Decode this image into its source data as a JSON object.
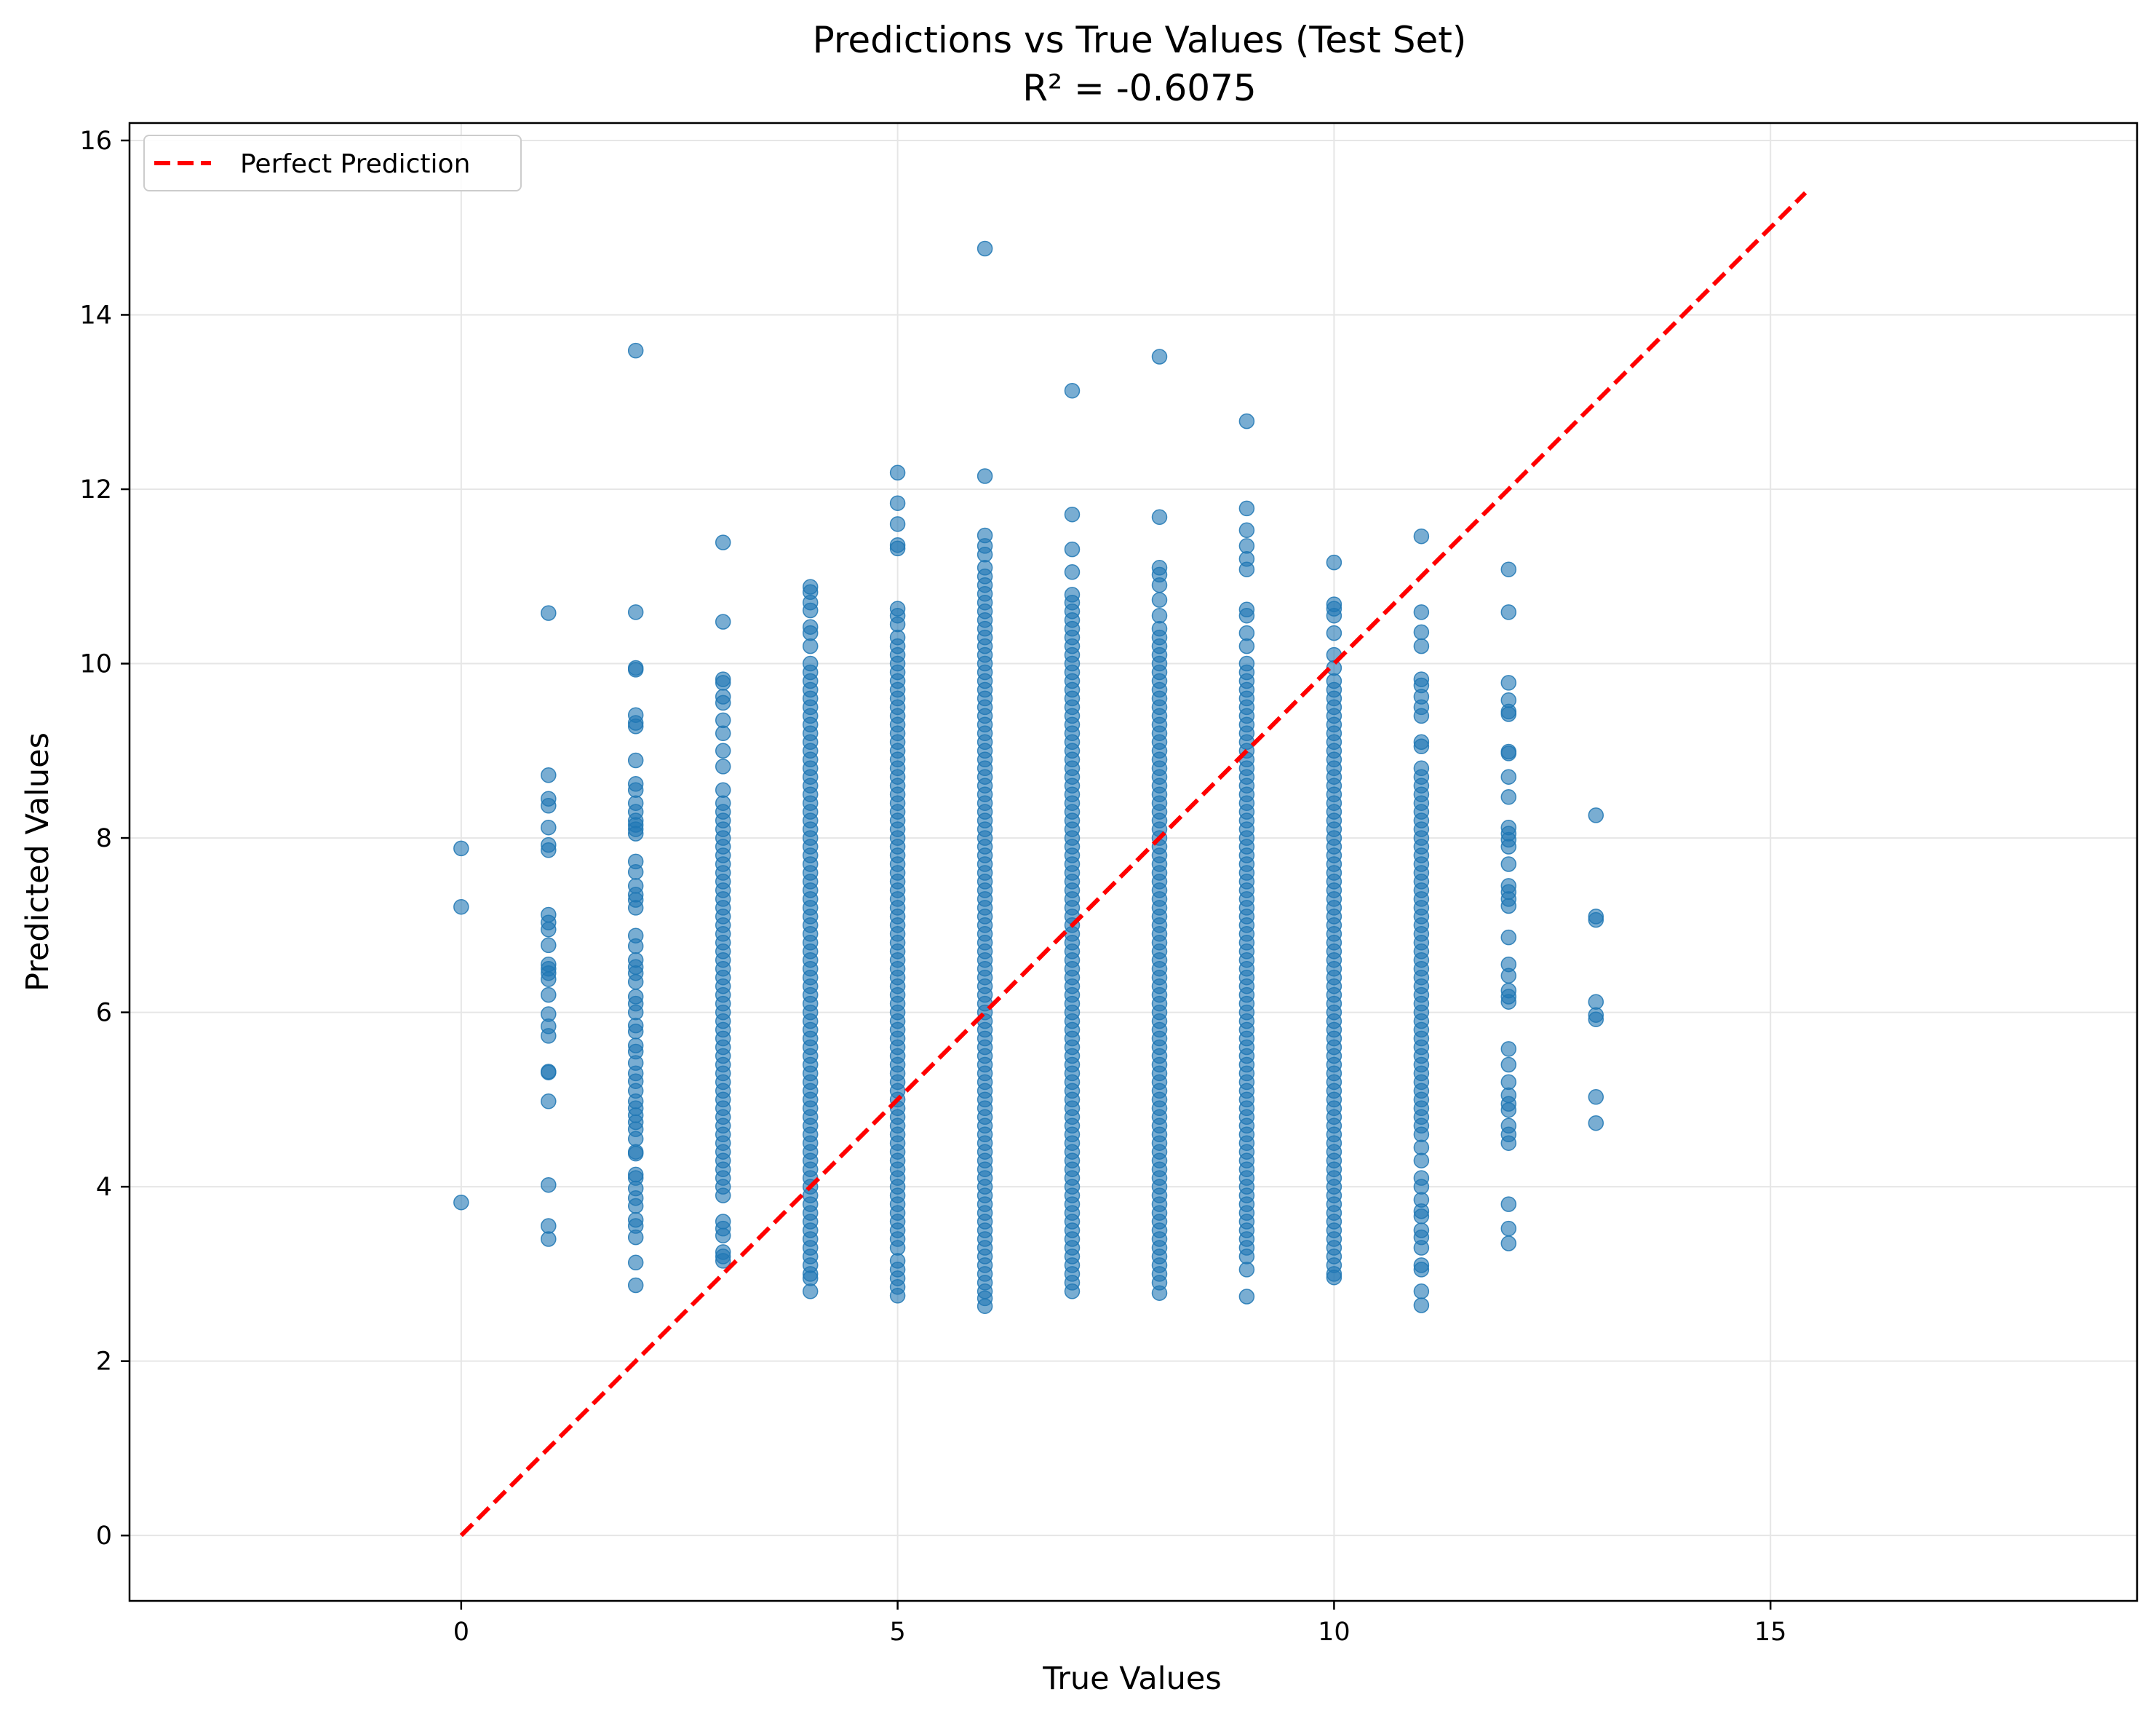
{
  "chart_data": {
    "type": "scatter",
    "title": "Predictions vs True Values (Test Set)",
    "subtitle": "R² = -0.6075",
    "xlabel": "True Values",
    "ylabel": "Predicted Values",
    "xlim": [
      -3.8,
      19.2
    ],
    "ylim": [
      -0.75,
      16.2
    ],
    "xticks": [
      0,
      5,
      10,
      15
    ],
    "yticks": [
      0,
      2,
      4,
      6,
      8,
      10,
      12,
      14,
      16
    ],
    "grid": true,
    "legend": {
      "position": "top-left",
      "entries": [
        "Perfect Prediction"
      ]
    },
    "colors": {
      "points": "#1f77b4",
      "reference": "#ff0000",
      "grid": "#e6e6e6"
    },
    "series": [
      {
        "type": "scatter",
        "points_by_x": [
          {
            "x": 0,
            "y": [
              7.88,
              7.21,
              3.82
            ]
          },
          {
            "x": 1,
            "y": [
              10.58,
              8.72,
              8.45,
              8.37,
              8.12,
              7.92,
              7.86,
              7.12,
              7.03,
              6.95,
              6.77,
              6.55,
              6.5,
              6.45,
              6.38,
              6.2,
              5.98,
              5.84,
              5.73,
              5.32,
              5.31,
              4.98,
              4.02,
              3.55,
              3.4
            ]
          },
          {
            "x": 2,
            "y": [
              13.59,
              10.59,
              9.95,
              9.93,
              9.41,
              9.32,
              9.28,
              8.89,
              8.62,
              8.55,
              8.4,
              8.3,
              8.2,
              8.15,
              8.1,
              8.05,
              7.73,
              7.61,
              7.45,
              7.35,
              7.29,
              7.2,
              6.88,
              6.76,
              6.6,
              6.52,
              6.45,
              6.35,
              6.18,
              6.1,
              6.0,
              5.85,
              5.78,
              5.62,
              5.55,
              5.42,
              5.3,
              5.21,
              5.1,
              4.98,
              4.9,
              4.82,
              4.74,
              4.66,
              4.55,
              4.4,
              4.38,
              4.14,
              4.1,
              3.98,
              3.87,
              3.78,
              3.62,
              3.55,
              3.42,
              3.13,
              2.87
            ]
          },
          {
            "x": 3,
            "y": [
              11.39,
              10.48,
              9.82,
              9.78,
              9.62,
              9.55,
              9.35,
              9.2,
              9.0,
              8.82,
              8.55,
              8.4,
              8.3,
              8.2,
              8.1,
              8.0,
              7.9,
              7.8,
              7.7,
              7.6,
              7.5,
              7.4,
              7.3,
              7.2,
              7.1,
              7.0,
              6.9,
              6.8,
              6.7,
              6.6,
              6.5,
              6.4,
              6.3,
              6.2,
              6.1,
              6.0,
              5.9,
              5.8,
              5.7,
              5.6,
              5.5,
              5.4,
              5.3,
              5.2,
              5.1,
              5.0,
              4.9,
              4.8,
              4.7,
              4.6,
              4.5,
              4.4,
              4.3,
              4.2,
              4.1,
              4.0,
              3.9,
              3.6,
              3.52,
              3.44,
              3.25,
              3.2,
              3.15
            ]
          },
          {
            "x": 4,
            "y": [
              10.88,
              10.82,
              10.7,
              10.61,
              10.42,
              10.35,
              10.2,
              10.0,
              9.9,
              9.8,
              9.7,
              9.6,
              9.5,
              9.4,
              9.3,
              9.2,
              9.1,
              9.0,
              8.9,
              8.8,
              8.7,
              8.6,
              8.5,
              8.4,
              8.3,
              8.2,
              8.1,
              8.0,
              7.9,
              7.8,
              7.7,
              7.6,
              7.5,
              7.4,
              7.3,
              7.2,
              7.1,
              7.0,
              6.9,
              6.8,
              6.7,
              6.6,
              6.5,
              6.4,
              6.3,
              6.2,
              6.1,
              6.0,
              5.9,
              5.8,
              5.7,
              5.6,
              5.5,
              5.4,
              5.3,
              5.2,
              5.1,
              5.0,
              4.9,
              4.8,
              4.7,
              4.6,
              4.5,
              4.4,
              4.3,
              4.2,
              4.1,
              4.0,
              3.9,
              3.8,
              3.7,
              3.6,
              3.5,
              3.4,
              3.3,
              3.2,
              3.1,
              3.0,
              2.95,
              2.8
            ]
          },
          {
            "x": 5,
            "y": [
              12.19,
              11.84,
              11.6,
              11.36,
              11.32,
              10.63,
              10.55,
              10.45,
              10.3,
              10.2,
              10.1,
              10.0,
              9.9,
              9.8,
              9.7,
              9.6,
              9.5,
              9.4,
              9.3,
              9.2,
              9.1,
              9.0,
              8.9,
              8.8,
              8.7,
              8.6,
              8.5,
              8.4,
              8.3,
              8.2,
              8.1,
              8.0,
              7.9,
              7.8,
              7.7,
              7.6,
              7.5,
              7.4,
              7.3,
              7.2,
              7.1,
              7.0,
              6.9,
              6.8,
              6.7,
              6.6,
              6.5,
              6.4,
              6.3,
              6.2,
              6.1,
              6.0,
              5.9,
              5.8,
              5.7,
              5.6,
              5.5,
              5.4,
              5.3,
              5.2,
              5.1,
              5.0,
              4.9,
              4.8,
              4.7,
              4.6,
              4.5,
              4.4,
              4.3,
              4.2,
              4.1,
              4.0,
              3.9,
              3.8,
              3.7,
              3.6,
              3.5,
              3.4,
              3.3,
              3.15,
              3.05,
              2.95,
              2.85,
              2.75
            ]
          },
          {
            "x": 6,
            "y": [
              14.76,
              12.15,
              11.47,
              11.35,
              11.25,
              11.1,
              11.0,
              10.9,
              10.8,
              10.7,
              10.6,
              10.5,
              10.4,
              10.3,
              10.2,
              10.1,
              10.0,
              9.9,
              9.8,
              9.7,
              9.6,
              9.5,
              9.4,
              9.3,
              9.2,
              9.1,
              9.0,
              8.9,
              8.8,
              8.7,
              8.6,
              8.5,
              8.4,
              8.3,
              8.2,
              8.1,
              8.0,
              7.9,
              7.8,
              7.7,
              7.6,
              7.5,
              7.4,
              7.3,
              7.2,
              7.1,
              7.0,
              6.9,
              6.8,
              6.7,
              6.6,
              6.5,
              6.4,
              6.3,
              6.2,
              6.1,
              6.0,
              5.9,
              5.8,
              5.7,
              5.6,
              5.5,
              5.4,
              5.3,
              5.2,
              5.1,
              5.0,
              4.9,
              4.8,
              4.7,
              4.6,
              4.5,
              4.4,
              4.3,
              4.2,
              4.1,
              4.0,
              3.9,
              3.8,
              3.7,
              3.6,
              3.5,
              3.4,
              3.3,
              3.2,
              3.1,
              3.0,
              2.9,
              2.8,
              2.72,
              2.63
            ]
          },
          {
            "x": 7,
            "y": [
              13.13,
              11.71,
              11.31,
              11.05,
              10.79,
              10.7,
              10.6,
              10.5,
              10.4,
              10.3,
              10.2,
              10.1,
              10.0,
              9.9,
              9.8,
              9.7,
              9.6,
              9.5,
              9.4,
              9.3,
              9.2,
              9.1,
              9.0,
              8.9,
              8.8,
              8.7,
              8.6,
              8.5,
              8.4,
              8.3,
              8.2,
              8.1,
              8.0,
              7.9,
              7.8,
              7.7,
              7.6,
              7.5,
              7.4,
              7.3,
              7.2,
              7.1,
              7.0,
              6.9,
              6.8,
              6.7,
              6.6,
              6.5,
              6.4,
              6.3,
              6.2,
              6.1,
              6.0,
              5.9,
              5.8,
              5.7,
              5.6,
              5.5,
              5.4,
              5.3,
              5.2,
              5.1,
              5.0,
              4.9,
              4.8,
              4.7,
              4.6,
              4.5,
              4.4,
              4.3,
              4.2,
              4.1,
              4.0,
              3.9,
              3.8,
              3.7,
              3.6,
              3.5,
              3.4,
              3.3,
              3.2,
              3.1,
              3.0,
              2.9,
              2.8
            ]
          },
          {
            "x": 8,
            "y": [
              13.52,
              11.68,
              11.1,
              11.02,
              10.9,
              10.73,
              10.55,
              10.4,
              10.3,
              10.2,
              10.1,
              10.0,
              9.9,
              9.8,
              9.7,
              9.6,
              9.5,
              9.4,
              9.3,
              9.2,
              9.1,
              9.0,
              8.9,
              8.8,
              8.7,
              8.6,
              8.5,
              8.4,
              8.3,
              8.2,
              8.1,
              8.0,
              7.9,
              7.8,
              7.7,
              7.6,
              7.5,
              7.4,
              7.3,
              7.2,
              7.1,
              7.0,
              6.9,
              6.8,
              6.7,
              6.6,
              6.5,
              6.4,
              6.3,
              6.2,
              6.1,
              6.0,
              5.9,
              5.8,
              5.7,
              5.6,
              5.5,
              5.4,
              5.3,
              5.2,
              5.1,
              5.0,
              4.9,
              4.8,
              4.7,
              4.6,
              4.5,
              4.4,
              4.3,
              4.2,
              4.1,
              4.0,
              3.9,
              3.8,
              3.7,
              3.6,
              3.5,
              3.4,
              3.3,
              3.2,
              3.1,
              3.0,
              2.9,
              2.78
            ]
          },
          {
            "x": 9,
            "y": [
              12.78,
              11.78,
              11.53,
              11.35,
              11.2,
              11.08,
              10.62,
              10.55,
              10.35,
              10.2,
              10.0,
              9.9,
              9.8,
              9.7,
              9.6,
              9.5,
              9.4,
              9.3,
              9.2,
              9.1,
              9.0,
              8.9,
              8.8,
              8.7,
              8.6,
              8.5,
              8.4,
              8.3,
              8.2,
              8.1,
              8.0,
              7.9,
              7.8,
              7.7,
              7.6,
              7.5,
              7.4,
              7.3,
              7.2,
              7.1,
              7.0,
              6.9,
              6.8,
              6.7,
              6.6,
              6.5,
              6.4,
              6.3,
              6.2,
              6.1,
              6.0,
              5.9,
              5.8,
              5.7,
              5.6,
              5.5,
              5.4,
              5.3,
              5.2,
              5.1,
              5.0,
              4.9,
              4.8,
              4.7,
              4.6,
              4.5,
              4.4,
              4.3,
              4.2,
              4.1,
              4.0,
              3.9,
              3.8,
              3.7,
              3.6,
              3.5,
              3.4,
              3.3,
              3.2,
              3.05,
              2.74
            ]
          },
          {
            "x": 10,
            "y": [
              11.16,
              10.68,
              10.63,
              10.55,
              10.35,
              10.1,
              9.95,
              9.8,
              9.7,
              9.6,
              9.5,
              9.4,
              9.3,
              9.2,
              9.1,
              9.0,
              8.9,
              8.8,
              8.7,
              8.6,
              8.5,
              8.4,
              8.3,
              8.2,
              8.1,
              8.0,
              7.9,
              7.8,
              7.7,
              7.6,
              7.5,
              7.4,
              7.3,
              7.2,
              7.1,
              7.0,
              6.9,
              6.8,
              6.7,
              6.6,
              6.5,
              6.4,
              6.3,
              6.2,
              6.1,
              6.0,
              5.9,
              5.8,
              5.7,
              5.6,
              5.5,
              5.4,
              5.3,
              5.2,
              5.1,
              5.0,
              4.9,
              4.8,
              4.7,
              4.6,
              4.5,
              4.4,
              4.3,
              4.2,
              4.1,
              4.0,
              3.9,
              3.8,
              3.7,
              3.6,
              3.5,
              3.4,
              3.3,
              3.2,
              3.1,
              3.0,
              2.96
            ]
          },
          {
            "x": 11,
            "y": [
              11.46,
              10.59,
              10.36,
              10.2,
              9.82,
              9.75,
              9.62,
              9.5,
              9.4,
              9.1,
              9.05,
              8.8,
              8.7,
              8.6,
              8.5,
              8.4,
              8.3,
              8.2,
              8.1,
              8.0,
              7.9,
              7.8,
              7.7,
              7.6,
              7.5,
              7.4,
              7.3,
              7.2,
              7.1,
              7.0,
              6.9,
              6.8,
              6.7,
              6.6,
              6.5,
              6.4,
              6.3,
              6.2,
              6.1,
              6.0,
              5.9,
              5.8,
              5.7,
              5.6,
              5.5,
              5.4,
              5.3,
              5.2,
              5.1,
              5.0,
              4.9,
              4.8,
              4.7,
              4.6,
              4.45,
              4.3,
              4.1,
              4.0,
              3.85,
              3.72,
              3.66,
              3.5,
              3.42,
              3.3,
              3.1,
              3.05,
              2.8,
              2.64
            ]
          },
          {
            "x": 12,
            "y": [
              11.08,
              10.59,
              9.78,
              9.58,
              9.45,
              9.42,
              8.99,
              8.97,
              8.7,
              8.47,
              8.12,
              8.05,
              7.98,
              7.9,
              7.7,
              7.45,
              7.38,
              7.3,
              7.22,
              6.86,
              6.55,
              6.42,
              6.25,
              6.18,
              6.12,
              5.58,
              5.4,
              5.2,
              5.05,
              4.95,
              4.88,
              4.7,
              4.6,
              4.5,
              3.8,
              3.52,
              3.35
            ]
          },
          {
            "x": 13,
            "y": [
              8.26,
              7.1,
              7.06,
              6.12,
              5.97,
              5.92,
              5.03,
              4.73
            ]
          }
        ]
      },
      {
        "type": "line",
        "name": "Perfect Prediction",
        "style": "dashed",
        "x": [
          0,
          15.4
        ],
        "y": [
          0,
          15.4
        ]
      }
    ]
  }
}
